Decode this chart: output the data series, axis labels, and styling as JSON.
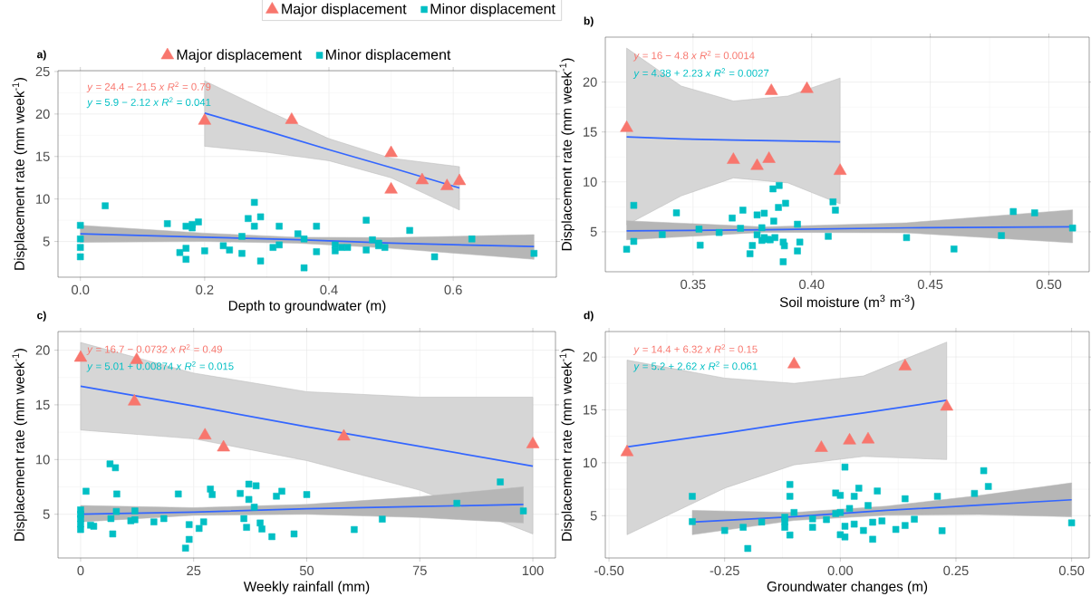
{
  "chart_data": [
    {
      "type": "scatter",
      "title": "a)",
      "xlabel": "Depth to groundwater (m)",
      "ylabel": "Displacement rate (mm week$^{-1}$)",
      "grid": true,
      "legend": "top",
      "xlim": [
        -0.036,
        0.766
      ],
      "ylim": [
        0.8,
        25.1
      ],
      "xticks": [
        {
          "value": 0,
          "label": "0.0"
        },
        {
          "value": 0.2,
          "label": "0.2"
        },
        {
          "value": 0.4,
          "label": "0.4"
        },
        {
          "value": 0.6,
          "label": "0.6"
        }
      ],
      "yticks": [
        5,
        10,
        15,
        20,
        25
      ],
      "annotations": [
        "*y* = 24.4 − 21.5 *x*   *R*$^{2}$ = 0.79",
        "*y* = 5.9 − 2.12 *x*   *R*$^{2}$ = 0.041"
      ],
      "series": [
        {
          "name": "Major displacement",
          "color": "#f8766d",
          "marker": "triangle",
          "x": [
            0.2,
            0.34,
            0.5,
            0.5,
            0.55,
            0.59,
            0.61
          ],
          "values": [
            19.2,
            19.3,
            15.4,
            11.1,
            12.2,
            11.5,
            12.1
          ]
        },
        {
          "name": "Minor displacement",
          "color": "#00bfc4",
          "marker": "square",
          "x": [
            0,
            0,
            0,
            0,
            0.04,
            0.14,
            0.17,
            0.18,
            0.18,
            0.19,
            0.16,
            0.17,
            0.17,
            0.2,
            0.23,
            0.24,
            0.26,
            0.26,
            0.27,
            0.28,
            0.28,
            0.29,
            0.29,
            0.31,
            0.32,
            0.32,
            0.35,
            0.36,
            0.36,
            0.38,
            0.38,
            0.41,
            0.41,
            0.42,
            0.43,
            0.46,
            0.46,
            0.47,
            0.48,
            0.48,
            0.49,
            0.53,
            0.57,
            0.63,
            0.73
          ],
          "values": [
            6.9,
            5.3,
            4.3,
            3.2,
            9.2,
            7.1,
            6.8,
            6.6,
            7.0,
            7.3,
            3.7,
            4.2,
            2.9,
            3.9,
            4.5,
            4.0,
            5.6,
            3.6,
            7.7,
            9.6,
            6.8,
            7.9,
            2.7,
            4.3,
            6.8,
            4.6,
            5.9,
            5.3,
            1.9,
            6.8,
            3.8,
            4.6,
            3.9,
            4.3,
            4.3,
            7.5,
            4.0,
            5.2,
            4.8,
            4.5,
            4.3,
            6.3,
            3.2,
            5.3,
            3.6
          ]
        },
        {
          "type": "line",
          "color": "#3366ff",
          "x": [
            0.2,
            0.3,
            0.4,
            0.5,
            0.61
          ],
          "values": [
            20.1,
            18.0,
            15.8,
            13.7,
            11.3
          ],
          "lower": [
            16.2,
            15.5,
            14.5,
            12.5,
            8.7
          ],
          "upper": [
            23.9,
            20.4,
            17.1,
            14.8,
            13.8
          ]
        },
        {
          "type": "line",
          "color": "#3366ff",
          "x": [
            0,
            0.2,
            0.35,
            0.5,
            0.73
          ],
          "values": [
            5.9,
            5.5,
            5.2,
            4.8,
            4.4
          ],
          "lower": [
            4.9,
            5.0,
            4.8,
            4.2,
            2.9
          ],
          "upper": [
            6.9,
            5.98,
            5.5,
            5.45,
            5.8
          ]
        }
      ]
    },
    {
      "type": "scatter",
      "title": "b)",
      "xlabel": "Soil moisture (m$^{3}$ m$^{-3}$)",
      "ylabel": "Displacement rate (mm week$^{-1}$)",
      "grid": true,
      "legend": "top left",
      "xlim": [
        0.313,
        0.517
      ],
      "ylim": [
        1.0,
        24.5
      ],
      "xticks": [
        {
          "value": 0.35,
          "label": "0.35"
        },
        {
          "value": 0.4,
          "label": "0.40"
        },
        {
          "value": 0.45,
          "label": "0.45"
        },
        {
          "value": 0.5,
          "label": "0.50"
        }
      ],
      "yticks": [
        5,
        10,
        15,
        20
      ],
      "annotations": [
        "*y* = 16 − 4.8 *x*   *R*$^{2}$ = 0.0014",
        "*y* = 4.38 + 2.23 *x*   *R*$^{2}$ = 0.0027"
      ],
      "series": [
        {
          "name": "Major displacement",
          "color": "#f8766d",
          "marker": "triangle",
          "x": [
            0.322,
            0.367,
            0.377,
            0.382,
            0.383,
            0.398,
            0.412
          ],
          "values": [
            15.4,
            12.2,
            11.6,
            12.3,
            19.1,
            19.3,
            11.1
          ]
        },
        {
          "name": "Minor displacement",
          "color": "#00bfc4",
          "marker": "square",
          "x": [
            0.322,
            0.325,
            0.325,
            0.337,
            0.343,
            0.3525,
            0.353,
            0.361,
            0.3665,
            0.37,
            0.371,
            0.374,
            0.375,
            0.377,
            0.377,
            0.379,
            0.379,
            0.38,
            0.38,
            0.3815,
            0.3825,
            0.3837,
            0.3845,
            0.3863,
            0.384,
            0.386,
            0.388,
            0.3885,
            0.388,
            0.389,
            0.394,
            0.394,
            0.395,
            0.407,
            0.409,
            0.41,
            0.44,
            0.46,
            0.48,
            0.485,
            0.494,
            0.51
          ],
          "values": [
            3.25,
            7.65,
            4.04,
            4.73,
            6.9,
            5.27,
            3.66,
            4.93,
            6.38,
            5.35,
            7.17,
            2.8,
            3.63,
            6.69,
            4.7,
            5.41,
            4.14,
            6.86,
            4.42,
            4.24,
            4.2,
            9.3,
            4.42,
            9.64,
            6.07,
            7.44,
            3.97,
            3.6,
            2.0,
            7.86,
            5.76,
            3.08,
            3.97,
            4.55,
            8.0,
            7.17,
            4.42,
            3.28,
            4.62,
            7.03,
            6.9,
            5.38
          ]
        },
        {
          "type": "line",
          "color": "#3366ff",
          "x": [
            0.322,
            0.345,
            0.367,
            0.39,
            0.412
          ],
          "values": [
            14.5,
            14.3,
            14.2,
            14.1,
            14.0
          ],
          "lower": [
            5.7,
            8.6,
            10.4,
            9.9,
            7.8
          ],
          "upper": [
            23.4,
            19.6,
            18.1,
            18.6,
            20.4
          ]
        },
        {
          "type": "line",
          "color": "#3366ff",
          "x": [
            0.322,
            0.38,
            0.44,
            0.51
          ],
          "values": [
            5.1,
            5.2,
            5.4,
            5.5
          ],
          "lower": [
            4.2,
            4.95,
            4.9,
            3.9
          ],
          "upper": [
            6.1,
            5.5,
            5.9,
            7.2
          ]
        }
      ]
    },
    {
      "type": "scatter",
      "title": "c)",
      "xlabel": "Weekly rainfall (mm)",
      "ylabel": "Displacement rate (mm week$^{-1}$)",
      "grid": true,
      "xlim": [
        -5,
        105
      ],
      "ylim": [
        1.0,
        21.7
      ],
      "xticks": [
        0,
        25,
        50,
        75,
        100
      ],
      "yticks": [
        5,
        10,
        15,
        20
      ],
      "annotations": [
        "*y* = 16.7 − 0.0732 *x*   *R*$^{2}$ = 0.49",
        "*y* = 5.01 + 0.00874 *x*   *R*$^{2}$ = 0.015"
      ],
      "series": [
        {
          "color": "#f8766d",
          "marker": "triangle",
          "x": [
            0,
            12.4,
            11.9,
            27.5,
            31.6,
            58.2,
            100
          ],
          "values": [
            19.3,
            19.1,
            15.3,
            12.2,
            11.1,
            12.1,
            11.4
          ]
        },
        {
          "color": "#00bfc4",
          "marker": "square",
          "x": [
            0,
            0,
            0,
            0,
            0,
            1.2,
            2.2,
            2.9,
            6.5,
            7.7,
            6.7,
            7.1,
            8.0,
            7.9,
            11.1,
            12.0,
            12.0,
            16.2,
            18.4,
            21.6,
            23.2,
            24.0,
            24.0,
            26.2,
            27.2,
            28.7,
            29.1,
            35.3,
            36.1,
            36.7,
            37.2,
            37.2,
            38.4,
            38.8,
            39.7,
            40.1,
            42.3,
            43.3,
            44.5,
            47.2,
            50.0,
            60.5,
            66.7,
            83.2,
            92.8,
            97.9
          ],
          "values": [
            5.4,
            5.0,
            4.6,
            4.1,
            3.6,
            7.1,
            4.0,
            3.9,
            9.6,
            9.25,
            4.6,
            3.2,
            6.85,
            5.25,
            4.4,
            5.3,
            4.5,
            4.3,
            4.6,
            6.85,
            1.9,
            2.7,
            4.05,
            3.7,
            4.3,
            7.3,
            6.8,
            6.9,
            4.6,
            3.8,
            6.35,
            7.75,
            5.65,
            7.6,
            4.2,
            3.65,
            2.95,
            6.65,
            7.1,
            3.2,
            6.8,
            3.6,
            4.55,
            6.0,
            7.95,
            5.3
          ]
        },
        {
          "type": "line",
          "color": "#3366ff",
          "x": [
            0,
            25,
            50,
            75,
            100
          ],
          "values": [
            16.7,
            14.9,
            13.0,
            11.2,
            9.4
          ],
          "lower": [
            12.7,
            11.9,
            9.9,
            7.2,
            3.2
          ],
          "upper": [
            20.7,
            17.9,
            16.2,
            15.7,
            15.7
          ]
        },
        {
          "type": "line",
          "color": "#3366ff",
          "x": [
            0,
            25,
            50,
            75,
            97.9
          ],
          "values": [
            5.0,
            5.2,
            5.5,
            5.7,
            5.9
          ],
          "lower": [
            4.3,
            4.9,
            5.0,
            4.7,
            4.2
          ],
          "upper": [
            5.8,
            5.6,
            5.9,
            6.6,
            7.5
          ]
        }
      ]
    },
    {
      "type": "scatter",
      "title": "d)",
      "xlabel": "Groundwater changes (m)",
      "ylabel": "Displacement rate (mm week$^{-1}$)",
      "grid": true,
      "xlim": [
        -0.508,
        0.538
      ],
      "ylim": [
        1.0,
        22.4
      ],
      "xticks": [
        {
          "value": -0.5,
          "label": "-0.50"
        },
        {
          "value": -0.25,
          "label": "-0.25"
        },
        {
          "value": 0,
          "label": "0.00"
        },
        {
          "value": 0.25,
          "label": "0.25"
        },
        {
          "value": 0.5,
          "label": "0.50"
        }
      ],
      "yticks": [
        5,
        10,
        15,
        20
      ],
      "annotations": [
        "*y* = 14.4 + 6.32 *x*   *R*$^{2}$ = 0.15",
        "*y* = 5.2 + 2.62 *x*   *R*$^{2}$ = 0.061"
      ],
      "series": [
        {
          "color": "#f8766d",
          "marker": "triangle",
          "x": [
            -0.461,
            -0.1,
            -0.041,
            0.02,
            0.06,
            0.14,
            0.23
          ],
          "values": [
            11.0,
            19.3,
            11.4,
            12.1,
            12.2,
            19.1,
            15.3
          ]
        },
        {
          "color": "#00bfc4",
          "marker": "square",
          "x": [
            -0.32,
            -0.32,
            -0.25,
            -0.21,
            -0.2,
            -0.17,
            -0.12,
            -0.12,
            -0.12,
            -0.109,
            -0.109,
            -0.109,
            -0.1,
            -0.06,
            -0.06,
            -0.03,
            -0.01,
            -0.01,
            0,
            0,
            0,
            0.01,
            0.01,
            0.01,
            0.02,
            0.03,
            0.03,
            0.04,
            0.05,
            0.06,
            0.07,
            0.07,
            0.08,
            0.09,
            0.12,
            0.14,
            0.14,
            0.16,
            0.21,
            0.22,
            0.29,
            0.31,
            0.32,
            0.5
          ],
          "values": [
            6.83,
            4.44,
            3.6,
            3.9,
            1.9,
            4.4,
            4.85,
            4.44,
            3.9,
            7.95,
            6.83,
            3.17,
            5.3,
            4.7,
            3.9,
            4.63,
            7.14,
            5.2,
            6.92,
            5.3,
            3.2,
            9.59,
            4.0,
            2.99,
            5.68,
            6.83,
            4.2,
            7.6,
            3.6,
            5.96,
            4.38,
            2.77,
            7.33,
            4.5,
            3.7,
            6.6,
            4.07,
            4.66,
            6.83,
            3.58,
            7.1,
            9.25,
            7.76,
            4.32
          ]
        },
        {
          "type": "line",
          "color": "#3366ff",
          "x": [
            -0.461,
            -0.25,
            -0.1,
            0.05,
            0.23
          ],
          "values": [
            11.5,
            12.8,
            13.8,
            14.7,
            15.9
          ],
          "lower": [
            3.2,
            7.6,
            9.8,
            10.6,
            10.3
          ],
          "upper": [
            19.7,
            18.0,
            17.5,
            18.2,
            21.4
          ]
        },
        {
          "type": "line",
          "color": "#3366ff",
          "x": [
            -0.32,
            -0.1,
            0.1,
            0.3,
            0.5
          ],
          "values": [
            4.4,
            4.9,
            5.5,
            6.0,
            6.5
          ],
          "lower": [
            3.2,
            4.55,
            5.05,
            5.1,
            4.9
          ],
          "upper": [
            5.5,
            5.3,
            5.9,
            6.9,
            8.1
          ]
        }
      ]
    }
  ]
}
